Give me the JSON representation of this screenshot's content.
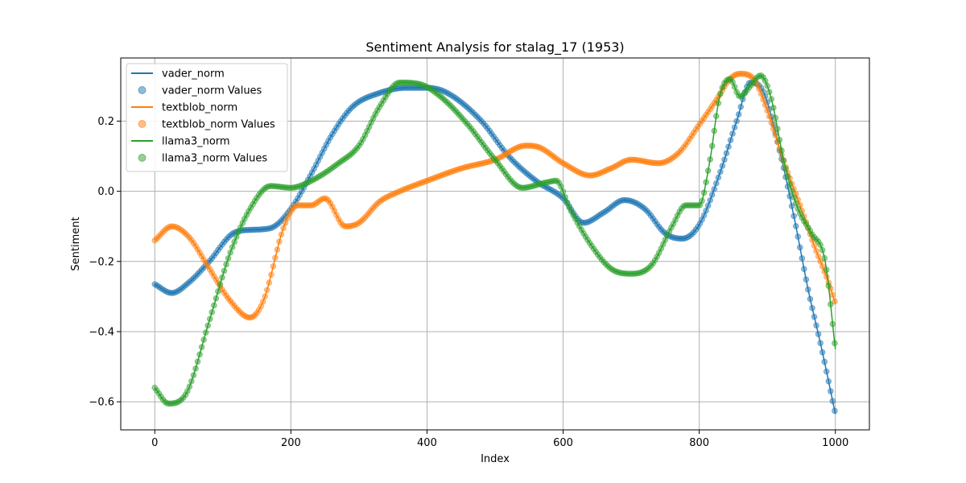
{
  "chart_data": {
    "type": "line",
    "title": "Sentiment Analysis for stalag_17 (1953)",
    "xlabel": "Index",
    "ylabel": "Sentiment",
    "xlim": [
      -50,
      1050
    ],
    "ylim": [
      -0.68,
      0.38
    ],
    "xticks": [
      0,
      200,
      400,
      600,
      800,
      1000
    ],
    "yticks": [
      -0.6,
      -0.4,
      -0.2,
      0.0,
      0.2
    ],
    "xtick_labels": [
      "0",
      "200",
      "400",
      "600",
      "800",
      "1000"
    ],
    "ytick_labels": [
      "−0.6",
      "−0.4",
      "−0.2",
      "0.0",
      "0.2"
    ],
    "grid": true,
    "legend_position": "top-left",
    "legend": [
      "vader_norm",
      "vader_norm Values",
      "textblob_norm",
      "textblob_norm Values",
      "llama3_norm",
      "llama3_norm Values"
    ],
    "series": [
      {
        "name": "vader_norm",
        "color": "#1f77b4",
        "points": [
          [
            0,
            -0.265
          ],
          [
            25,
            -0.29
          ],
          [
            50,
            -0.26
          ],
          [
            80,
            -0.2
          ],
          [
            115,
            -0.12
          ],
          [
            140,
            -0.11
          ],
          [
            170,
            -0.105
          ],
          [
            200,
            -0.05
          ],
          [
            230,
            0.05
          ],
          [
            260,
            0.16
          ],
          [
            290,
            0.24
          ],
          [
            330,
            0.28
          ],
          [
            370,
            0.295
          ],
          [
            400,
            0.295
          ],
          [
            430,
            0.28
          ],
          [
            480,
            0.2
          ],
          [
            520,
            0.1
          ],
          [
            560,
            0.03
          ],
          [
            600,
            -0.02
          ],
          [
            630,
            -0.09
          ],
          [
            660,
            -0.06
          ],
          [
            690,
            -0.025
          ],
          [
            720,
            -0.05
          ],
          [
            750,
            -0.12
          ],
          [
            775,
            -0.135
          ],
          [
            800,
            -0.095
          ],
          [
            830,
            0.05
          ],
          [
            855,
            0.2
          ],
          [
            875,
            0.31
          ],
          [
            895,
            0.28
          ],
          [
            920,
            0.1
          ],
          [
            940,
            -0.08
          ],
          [
            960,
            -0.28
          ],
          [
            980,
            -0.45
          ],
          [
            1000,
            -0.635
          ]
        ]
      },
      {
        "name": "textblob_norm",
        "color": "#ff7f0e",
        "points": [
          [
            0,
            -0.14
          ],
          [
            25,
            -0.1
          ],
          [
            50,
            -0.13
          ],
          [
            80,
            -0.22
          ],
          [
            110,
            -0.31
          ],
          [
            140,
            -0.36
          ],
          [
            160,
            -0.31
          ],
          [
            190,
            -0.1
          ],
          [
            210,
            -0.04
          ],
          [
            230,
            -0.04
          ],
          [
            250,
            -0.02
          ],
          [
            280,
            -0.1
          ],
          [
            300,
            -0.09
          ],
          [
            330,
            -0.03
          ],
          [
            360,
            0.0
          ],
          [
            400,
            0.03
          ],
          [
            450,
            0.065
          ],
          [
            500,
            0.09
          ],
          [
            545,
            0.13
          ],
          [
            565,
            0.125
          ],
          [
            600,
            0.08
          ],
          [
            640,
            0.045
          ],
          [
            670,
            0.065
          ],
          [
            700,
            0.09
          ],
          [
            740,
            0.08
          ],
          [
            770,
            0.11
          ],
          [
            800,
            0.19
          ],
          [
            825,
            0.26
          ],
          [
            845,
            0.32
          ],
          [
            860,
            0.335
          ],
          [
            880,
            0.32
          ],
          [
            900,
            0.23
          ],
          [
            925,
            0.08
          ],
          [
            950,
            -0.05
          ],
          [
            970,
            -0.16
          ],
          [
            990,
            -0.26
          ],
          [
            1000,
            -0.32
          ]
        ]
      },
      {
        "name": "llama3_norm",
        "color": "#2ca02c",
        "points": [
          [
            0,
            -0.56
          ],
          [
            20,
            -0.605
          ],
          [
            45,
            -0.58
          ],
          [
            80,
            -0.37
          ],
          [
            110,
            -0.18
          ],
          [
            140,
            -0.05
          ],
          [
            170,
            0.015
          ],
          [
            200,
            0.01
          ],
          [
            230,
            0.03
          ],
          [
            270,
            0.08
          ],
          [
            300,
            0.13
          ],
          [
            330,
            0.24
          ],
          [
            360,
            0.31
          ],
          [
            390,
            0.305
          ],
          [
            420,
            0.27
          ],
          [
            460,
            0.19
          ],
          [
            500,
            0.09
          ],
          [
            540,
            0.01
          ],
          [
            575,
            0.025
          ],
          [
            590,
            0.03
          ],
          [
            610,
            -0.05
          ],
          [
            640,
            -0.15
          ],
          [
            670,
            -0.22
          ],
          [
            700,
            -0.235
          ],
          [
            730,
            -0.21
          ],
          [
            760,
            -0.1
          ],
          [
            780,
            -0.04
          ],
          [
            800,
            -0.04
          ],
          [
            815,
            0.08
          ],
          [
            830,
            0.27
          ],
          [
            845,
            0.32
          ],
          [
            860,
            0.27
          ],
          [
            875,
            0.3
          ],
          [
            890,
            0.33
          ],
          [
            905,
            0.27
          ],
          [
            925,
            0.08
          ],
          [
            945,
            -0.05
          ],
          [
            965,
            -0.12
          ],
          [
            985,
            -0.2
          ],
          [
            1000,
            -0.45
          ]
        ]
      }
    ]
  }
}
